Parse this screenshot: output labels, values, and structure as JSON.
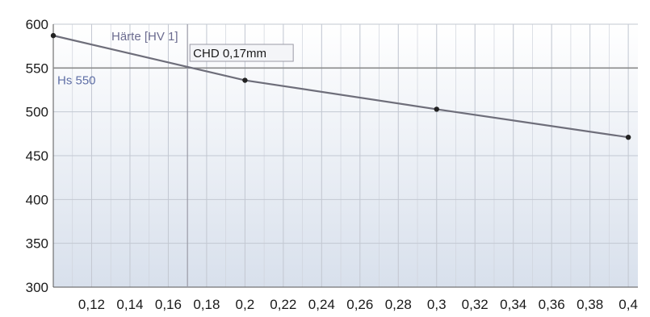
{
  "chart_data": {
    "type": "line",
    "series": [
      {
        "name": "Härte [HV 1]",
        "x": [
          0.1,
          0.2,
          0.3,
          0.4
        ],
        "y": [
          587,
          536,
          503,
          471
        ]
      }
    ],
    "xlim": [
      0.1,
      0.405
    ],
    "ylim": [
      300,
      600
    ],
    "x_ticks": [
      0.12,
      0.14,
      0.16,
      0.18,
      0.2,
      0.22,
      0.24,
      0.26,
      0.28,
      0.3,
      0.32,
      0.34,
      0.36,
      0.38,
      0.4
    ],
    "x_tick_labels": [
      "0,12",
      "0,14",
      "0,16",
      "0,18",
      "0,2",
      "0,22",
      "0,24",
      "0,26",
      "0,28",
      "0,3",
      "0,32",
      "0,34",
      "0,36",
      "0,38",
      "0,4"
    ],
    "y_ticks": [
      300,
      350,
      400,
      450,
      500,
      550,
      600
    ],
    "y_tick_labels": [
      "300",
      "350",
      "400",
      "450",
      "500",
      "550",
      "600"
    ],
    "x_minor_grid_step": 0.01,
    "grid": true,
    "reference_line": {
      "axis": "y",
      "value": 550,
      "label": "Hs 550"
    },
    "marker_line": {
      "axis": "x",
      "value": 0.17,
      "label": "CHD 0,17mm"
    },
    "colors": {
      "series": "#6e6e7a",
      "marker": "#222222",
      "reference": "#8a8a8a",
      "grid": "#cfd3dc",
      "plot_top": "#ffffff",
      "plot_bottom": "#d8e0ec",
      "axis": "#555555"
    }
  }
}
